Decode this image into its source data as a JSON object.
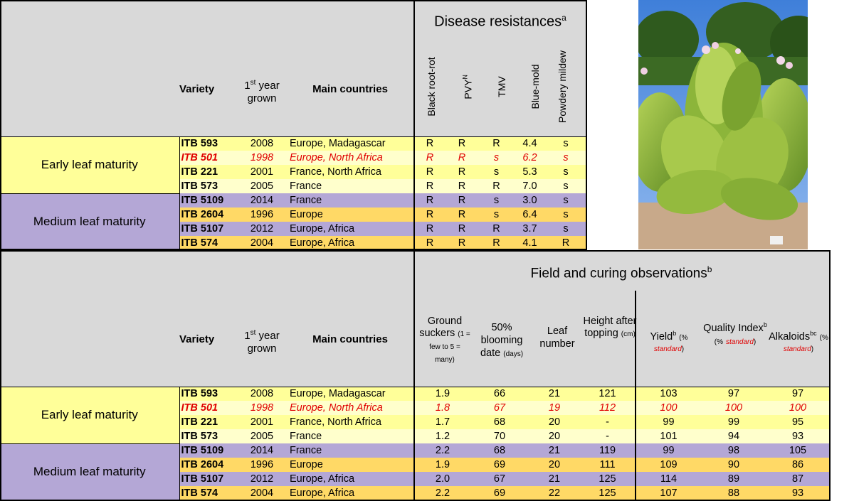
{
  "top": {
    "section_title": "Disease resistances",
    "section_title_sup": "a",
    "col_variety": "Variety",
    "col_year_sup": "st",
    "col_year_pre": "1",
    "col_year_post": " year grown",
    "col_countries": "Main countries",
    "disease_cols": [
      "Black root-rot",
      "PVY",
      "TMV",
      "Blue-mold",
      "Powdery mildew"
    ],
    "pvy_sup": "N",
    "groups": [
      "Early leaf maturity",
      "Medium leaf maturity"
    ],
    "rows": [
      {
        "variety": "ITB 593",
        "year": "2008",
        "countries": "Europe, Madagascar",
        "v": [
          "R",
          "R",
          "R",
          "4.4",
          "s"
        ]
      },
      {
        "variety": "ITB 501",
        "year": "1998",
        "countries": "Europe, North Africa",
        "v": [
          "R",
          "R",
          "s",
          "6.2",
          "s"
        ]
      },
      {
        "variety": "ITB 221",
        "year": "2001",
        "countries": "France, North Africa",
        "v": [
          "R",
          "R",
          "s",
          "5.3",
          "s"
        ]
      },
      {
        "variety": "ITB 573",
        "year": "2005",
        "countries": "France",
        "v": [
          "R",
          "R",
          "R",
          "7.0",
          "s"
        ]
      },
      {
        "variety": "ITB 5109",
        "year": "2014",
        "countries": "France",
        "v": [
          "R",
          "R",
          "s",
          "3.0",
          "s"
        ]
      },
      {
        "variety": "ITB 2604",
        "year": "1996",
        "countries": "Europe",
        "v": [
          "R",
          "R",
          "s",
          "6.4",
          "s"
        ]
      },
      {
        "variety": "ITB 5107",
        "year": "2012",
        "countries": "Europe, Africa",
        "v": [
          "R",
          "R",
          "R",
          "3.7",
          "s"
        ]
      },
      {
        "variety": "ITB 574",
        "year": "2004",
        "countries": "Europe, Africa",
        "v": [
          "R",
          "R",
          "R",
          "4.1",
          "R"
        ]
      }
    ]
  },
  "bottom": {
    "section_title": "Field and curing observations",
    "section_title_sup": "b",
    "col_variety": "Variety",
    "col_year_pre": "1",
    "col_year_sup": "st",
    "col_year_post": " year grown",
    "col_countries": "Main countries",
    "h_suckers": "Ground suckers",
    "h_suckers_note": "(1 = few to 5 = many)",
    "h_blooming": "50% blooming date",
    "h_blooming_note": "(days)",
    "h_leaf": "Leaf number",
    "h_height": "Height after topping",
    "h_height_note": "(cm)",
    "h_yield": "Yield",
    "h_yield_sup": "b",
    "h_quality": "Quality Index",
    "h_quality_sup": "b",
    "h_alkaloids": "Alkaloids",
    "h_alkaloids_sup": "bc",
    "pct_open": "(%",
    "pct_standard": "standard",
    "pct_close": ")",
    "groups": [
      "Early leaf maturity",
      "Medium leaf maturity"
    ],
    "rows": [
      {
        "variety": "ITB 593",
        "year": "2008",
        "countries": "Europe, Madagascar",
        "v": [
          "1.9",
          "66",
          "21",
          "121",
          "103",
          "97",
          "97"
        ]
      },
      {
        "variety": "ITB 501",
        "year": "1998",
        "countries": "Europe, North Africa",
        "v": [
          "1.8",
          "67",
          "19",
          "112",
          "100",
          "100",
          "100"
        ]
      },
      {
        "variety": "ITB 221",
        "year": "2001",
        "countries": "France, North Africa",
        "v": [
          "1.7",
          "68",
          "20",
          "-",
          "99",
          "99",
          "95"
        ]
      },
      {
        "variety": "ITB 573",
        "year": "2005",
        "countries": "France",
        "v": [
          "1.2",
          "70",
          "20",
          "-",
          "101",
          "94",
          "93"
        ]
      },
      {
        "variety": "ITB 5109",
        "year": "2014",
        "countries": "France",
        "v": [
          "2.2",
          "68",
          "21",
          "119",
          "99",
          "98",
          "105"
        ]
      },
      {
        "variety": "ITB 2604",
        "year": "1996",
        "countries": "Europe",
        "v": [
          "1.9",
          "69",
          "20",
          "111",
          "109",
          "90",
          "86"
        ]
      },
      {
        "variety": "ITB 5107",
        "year": "2012",
        "countries": "Europe, Africa",
        "v": [
          "2.0",
          "67",
          "21",
          "125",
          "114",
          "89",
          "87"
        ]
      },
      {
        "variety": "ITB 574",
        "year": "2004",
        "countries": "Europe, Africa",
        "v": [
          "2.2",
          "69",
          "22",
          "125",
          "107",
          "88",
          "93"
        ]
      }
    ]
  },
  "colors": {
    "early": "#ffff99",
    "early_alt": "#ffffcc",
    "medium": "#b4a7d6",
    "medium_alt": "#ffd966",
    "highlight": "#e00000",
    "header": "#d9d9d9"
  },
  "photo": {
    "icon": "tobacco-plant-photo"
  }
}
